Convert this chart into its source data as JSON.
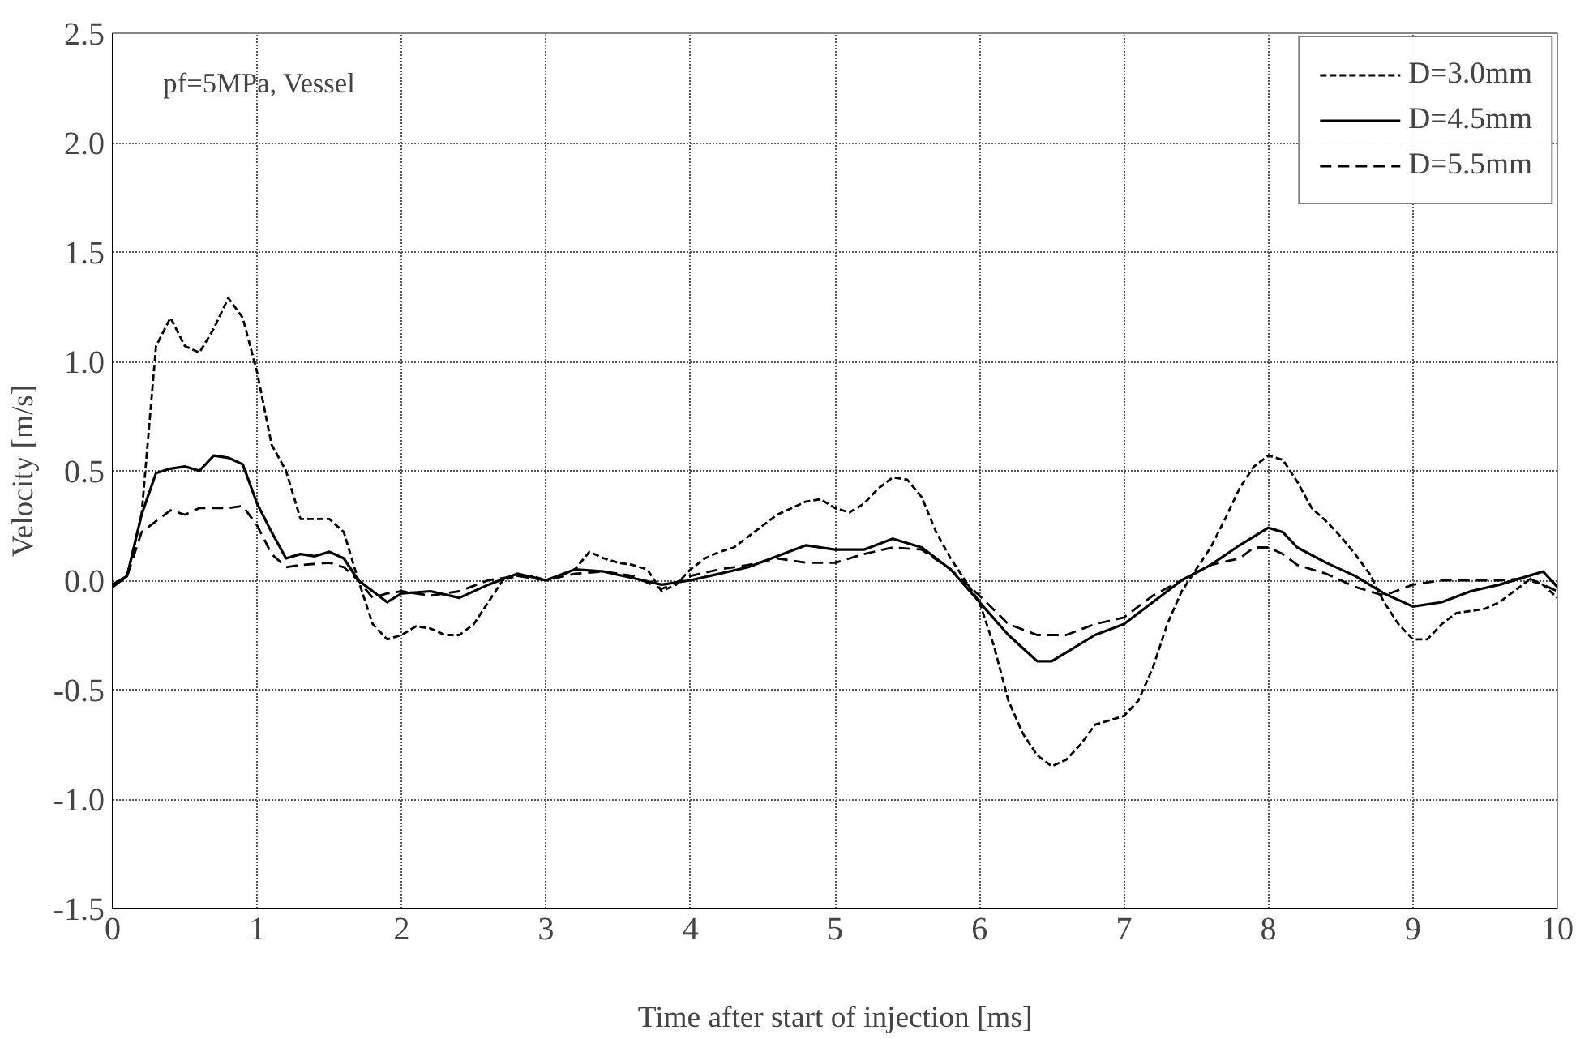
{
  "chart_data": {
    "type": "line",
    "xlabel": "Time after start of injection [ms]",
    "ylabel": "Velocity [m/s]",
    "annotations": [
      "pf=5MPa, Vessel"
    ],
    "xlim": [
      0,
      10
    ],
    "xticks": [
      0,
      1,
      2,
      3,
      4,
      5,
      6,
      7,
      8,
      9,
      10
    ],
    "ylim": [
      -1.5,
      2.5
    ],
    "yticks": [
      {
        "value": -1.5,
        "label": "-1.5"
      },
      {
        "value": -1.0,
        "label": "-1.0"
      },
      {
        "value": -0.5,
        "label": "-0.5"
      },
      {
        "value": 0,
        "label": "0.0"
      },
      {
        "value": 0.5,
        "label": "0.5"
      },
      {
        "value": 1.0,
        "label": "1.0"
      },
      {
        "value": 1.5,
        "label": "1.5"
      },
      {
        "value": 2.0,
        "label": "2.0"
      },
      {
        "value": 2.5,
        "label": "2.5"
      }
    ],
    "grid": true,
    "legend": "top right",
    "marker": "none",
    "series": [
      {
        "name": "D=3.0mm",
        "color": "#000000",
        "line_style": "dotted",
        "x": [
          0,
          0.1,
          0.2,
          0.3,
          0.4,
          0.5,
          0.6,
          0.7,
          0.8,
          0.9,
          1.0,
          1.1,
          1.2,
          1.3,
          1.4,
          1.5,
          1.6,
          1.7,
          1.8,
          1.9,
          2.0,
          2.1,
          2.2,
          2.3,
          2.4,
          2.5,
          2.6,
          2.7,
          2.8,
          2.9,
          3.0,
          3.1,
          3.2,
          3.3,
          3.4,
          3.5,
          3.6,
          3.7,
          3.8,
          3.9,
          4.0,
          4.1,
          4.2,
          4.3,
          4.4,
          4.5,
          4.6,
          4.7,
          4.8,
          4.9,
          5.0,
          5.1,
          5.2,
          5.3,
          5.4,
          5.5,
          5.6,
          5.7,
          5.8,
          5.9,
          6.0,
          6.1,
          6.2,
          6.3,
          6.4,
          6.5,
          6.6,
          6.7,
          6.8,
          6.9,
          7.0,
          7.1,
          7.2,
          7.3,
          7.4,
          7.5,
          7.6,
          7.7,
          7.8,
          7.9,
          8.0,
          8.1,
          8.2,
          8.3,
          8.4,
          8.5,
          8.6,
          8.7,
          8.8,
          8.9,
          9.0,
          9.1,
          9.2,
          9.3,
          9.4,
          9.5,
          9.6,
          9.7,
          9.8,
          9.9,
          10
        ],
        "values": [
          -0.02,
          0.02,
          0.3,
          1.07,
          1.2,
          1.07,
          1.04,
          1.15,
          1.29,
          1.2,
          0.95,
          0.62,
          0.5,
          0.28,
          0.28,
          0.28,
          0.22,
          0.0,
          -0.2,
          -0.27,
          -0.25,
          -0.21,
          -0.22,
          -0.25,
          -0.25,
          -0.2,
          -0.1,
          0.0,
          0.02,
          0.02,
          0.0,
          0.02,
          0.05,
          0.13,
          0.1,
          0.08,
          0.07,
          0.05,
          -0.05,
          -0.02,
          0.05,
          0.1,
          0.13,
          0.15,
          0.2,
          0.25,
          0.3,
          0.33,
          0.36,
          0.37,
          0.33,
          0.31,
          0.35,
          0.42,
          0.47,
          0.46,
          0.38,
          0.22,
          0.1,
          0.0,
          -0.1,
          -0.3,
          -0.55,
          -0.7,
          -0.8,
          -0.85,
          -0.82,
          -0.75,
          -0.66,
          -0.64,
          -0.62,
          -0.55,
          -0.4,
          -0.2,
          -0.05,
          0.05,
          0.15,
          0.28,
          0.42,
          0.52,
          0.57,
          0.55,
          0.45,
          0.33,
          0.27,
          0.2,
          0.12,
          0.03,
          -0.1,
          -0.2,
          -0.27,
          -0.27,
          -0.2,
          -0.15,
          -0.14,
          -0.13,
          -0.1,
          -0.05,
          0.0,
          -0.02,
          -0.08
        ]
      },
      {
        "name": "D=4.5mm",
        "color": "#000000",
        "line_style": "solid",
        "x": [
          0,
          0.1,
          0.2,
          0.3,
          0.4,
          0.5,
          0.6,
          0.7,
          0.8,
          0.9,
          1.0,
          1.1,
          1.2,
          1.3,
          1.4,
          1.5,
          1.6,
          1.7,
          1.8,
          1.9,
          2.0,
          2.2,
          2.4,
          2.6,
          2.8,
          3.0,
          3.2,
          3.4,
          3.6,
          3.8,
          4.0,
          4.2,
          4.4,
          4.6,
          4.8,
          5.0,
          5.2,
          5.4,
          5.6,
          5.8,
          6.0,
          6.2,
          6.4,
          6.5,
          6.6,
          6.8,
          7.0,
          7.2,
          7.4,
          7.6,
          7.8,
          8.0,
          8.1,
          8.2,
          8.4,
          8.6,
          8.8,
          9.0,
          9.2,
          9.4,
          9.6,
          9.8,
          9.9,
          10
        ],
        "values": [
          -0.03,
          0.02,
          0.3,
          0.49,
          0.51,
          0.52,
          0.5,
          0.57,
          0.56,
          0.53,
          0.35,
          0.22,
          0.1,
          0.12,
          0.11,
          0.13,
          0.1,
          0.0,
          -0.05,
          -0.1,
          -0.06,
          -0.05,
          -0.08,
          -0.02,
          0.03,
          0.0,
          0.05,
          0.04,
          0.01,
          -0.02,
          0.0,
          0.03,
          0.06,
          0.11,
          0.16,
          0.14,
          0.14,
          0.19,
          0.15,
          0.05,
          -0.1,
          -0.25,
          -0.37,
          -0.37,
          -0.33,
          -0.25,
          -0.2,
          -0.1,
          0.0,
          0.07,
          0.16,
          0.24,
          0.22,
          0.15,
          0.08,
          0.02,
          -0.06,
          -0.12,
          -0.1,
          -0.05,
          -0.02,
          0.02,
          0.04,
          -0.03
        ]
      },
      {
        "name": "D=5.5mm",
        "color": "#000000",
        "line_style": "dashed",
        "x": [
          0,
          0.1,
          0.2,
          0.3,
          0.4,
          0.5,
          0.6,
          0.8,
          0.9,
          1.0,
          1.1,
          1.2,
          1.3,
          1.5,
          1.6,
          1.7,
          1.8,
          1.9,
          2.0,
          2.2,
          2.4,
          2.6,
          2.8,
          3.0,
          3.2,
          3.4,
          3.6,
          3.8,
          4.0,
          4.2,
          4.4,
          4.6,
          4.8,
          5.0,
          5.2,
          5.4,
          5.6,
          5.8,
          6.0,
          6.2,
          6.4,
          6.6,
          6.8,
          7.0,
          7.2,
          7.4,
          7.6,
          7.8,
          7.9,
          8.0,
          8.1,
          8.2,
          8.4,
          8.6,
          8.8,
          9.0,
          9.2,
          9.4,
          9.6,
          9.8,
          10
        ],
        "values": [
          -0.02,
          0.02,
          0.22,
          0.27,
          0.32,
          0.3,
          0.33,
          0.33,
          0.34,
          0.25,
          0.12,
          0.06,
          0.07,
          0.08,
          0.06,
          0.0,
          -0.08,
          -0.06,
          -0.05,
          -0.07,
          -0.05,
          0.0,
          0.02,
          0.0,
          0.03,
          0.04,
          0.02,
          -0.04,
          0.02,
          0.05,
          0.07,
          0.1,
          0.08,
          0.08,
          0.12,
          0.15,
          0.14,
          0.05,
          -0.07,
          -0.2,
          -0.25,
          -0.25,
          -0.2,
          -0.17,
          -0.07,
          0.0,
          0.07,
          0.1,
          0.15,
          0.15,
          0.12,
          0.07,
          0.03,
          -0.03,
          -0.07,
          -0.02,
          0.0,
          0.0,
          0.0,
          0.01,
          -0.05
        ]
      }
    ]
  }
}
